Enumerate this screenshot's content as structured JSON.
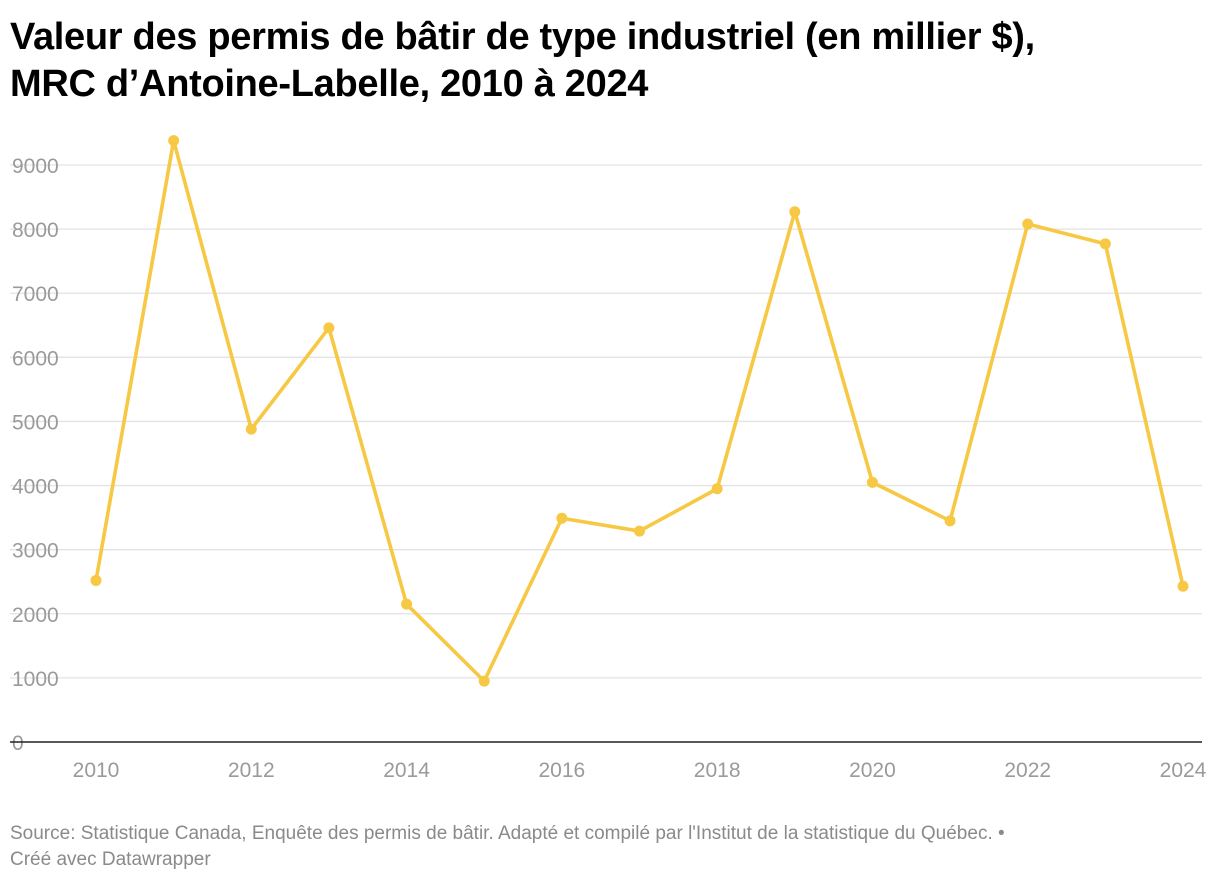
{
  "chart_data": {
    "type": "line",
    "title_lines": [
      "Valeur des permis de bâtir de type industriel (en millier $),",
      "MRC d’Antoine-Labelle, 2010 à 2024"
    ],
    "xlabel": "",
    "ylabel": "",
    "x": [
      2010,
      2011,
      2012,
      2013,
      2014,
      2015,
      2016,
      2017,
      2018,
      2019,
      2020,
      2021,
      2022,
      2023,
      2024
    ],
    "series": [
      {
        "values": [
          2520,
          9380,
          4880,
          6460,
          2150,
          950,
          3490,
          3290,
          3950,
          8270,
          4050,
          3450,
          8080,
          7770,
          2430
        ]
      }
    ],
    "xticks": [
      "2010",
      "2012",
      "2014",
      "2016",
      "2018",
      "2020",
      "2022",
      "2024"
    ],
    "yticks": [
      "0",
      "1000",
      "2000",
      "3000",
      "4000",
      "5000",
      "6000",
      "7000",
      "8000",
      "9000"
    ],
    "ylim": [
      0,
      9000
    ],
    "xlim": [
      2010,
      2024
    ],
    "grid": true,
    "line_color": "#f7c844"
  },
  "footer": {
    "source": "Source: Statistique Canada, Enquête des permis de bâtir. Adapté et compilé par l'Institut de la statistique du Québec.  •",
    "credit": "Créé avec Datawrapper"
  }
}
